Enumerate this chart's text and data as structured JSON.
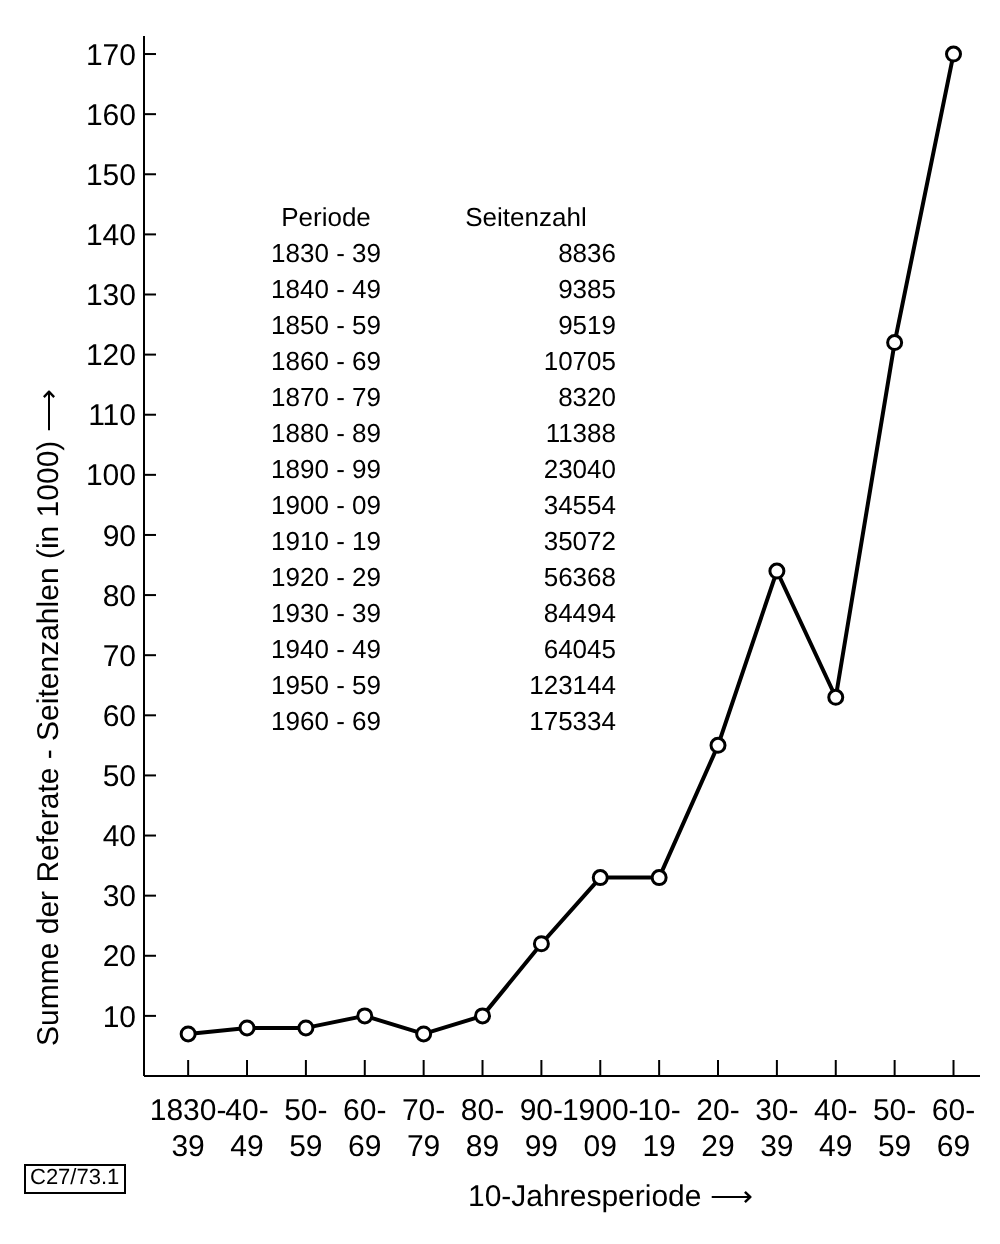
{
  "chart_data": {
    "type": "line",
    "xlabel": "10-Jahresperiode ⟶",
    "ylabel": "Summe der Referate - Seitenzahlen (in 1000) ⟶",
    "categories": [
      "1830-39",
      "40-49",
      "50-59",
      "60-69",
      "70-79",
      "80-89",
      "90-99",
      "1900-09",
      "10-19",
      "20-29",
      "30-39",
      "40-49",
      "50-59",
      "60-69"
    ],
    "series": [
      {
        "color": "#000000",
        "values": [
          7,
          8,
          8,
          10,
          7,
          10,
          22,
          33,
          33,
          55,
          84,
          63,
          122,
          170
        ]
      }
    ],
    "ylim": [
      0,
      173
    ],
    "yticks": [
      10,
      20,
      30,
      40,
      50,
      60,
      70,
      80,
      90,
      100,
      110,
      120,
      130,
      140,
      150,
      160,
      170
    ],
    "marker": "circle",
    "grid": false,
    "legend": false,
    "annotations": [
      "Periode",
      "Seitenzahl",
      "1830 - 39",
      "8836",
      "1840 - 49",
      "9385",
      "1850 - 59",
      "9519",
      "1860 - 69",
      "10705",
      "1870 - 79",
      "8320",
      "1880 - 89",
      "11388",
      "1890 - 99",
      "23040",
      "1900 - 09",
      "34554",
      "1910 - 19",
      "35072",
      "1920 - 29",
      "56368",
      "1930 - 39",
      "84494",
      "1940 - 49",
      "64045",
      "1950 - 59",
      "123144",
      "1960 - 69",
      "175334",
      "C27/73.1"
    ]
  }
}
